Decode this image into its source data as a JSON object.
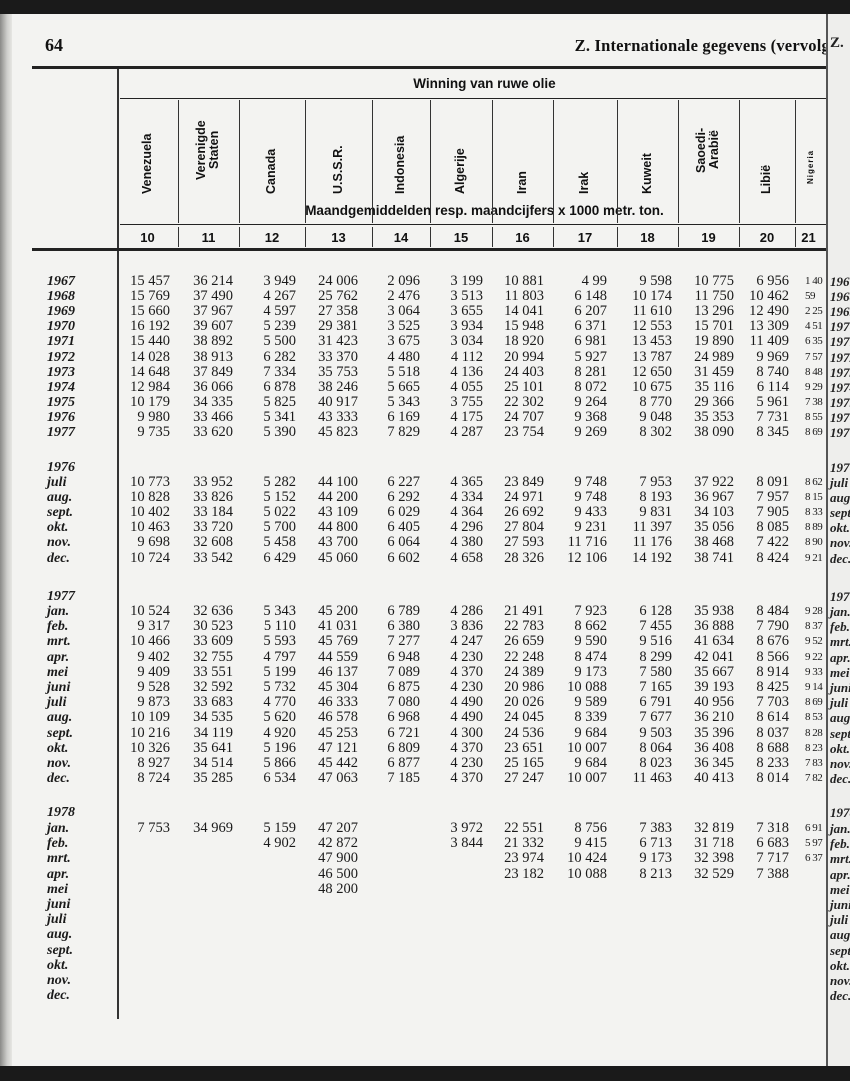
{
  "page_number": "64",
  "running_head": "Z.  Internationale gegevens (vervolg",
  "next_page_head": "Z.",
  "table": {
    "title": "Winning van ruwe olie",
    "unit_note": "Maandgemiddelden resp. maandcijfers x 1000 metr. ton.",
    "columns": [
      {
        "number": "10",
        "label": [
          "Venezuela"
        ]
      },
      {
        "number": "11",
        "label": [
          "Verenigde",
          "Staten"
        ]
      },
      {
        "number": "12",
        "label": [
          "Canada"
        ]
      },
      {
        "number": "13",
        "label": [
          "U.S.S.R."
        ]
      },
      {
        "number": "14",
        "label": [
          "Indonesia"
        ]
      },
      {
        "number": "15",
        "label": [
          "Algerije"
        ]
      },
      {
        "number": "16",
        "label": [
          "Iran"
        ]
      },
      {
        "number": "17",
        "label": [
          "Irak"
        ]
      },
      {
        "number": "18",
        "label": [
          "Kuweit"
        ]
      },
      {
        "number": "19",
        "label": [
          "Saoedi-",
          "Arabië"
        ]
      },
      {
        "number": "20",
        "label": [
          "Libië"
        ]
      },
      {
        "number": "21",
        "label": [
          "Nigeria"
        ]
      }
    ],
    "sections": [
      {
        "heading": "",
        "rows": [
          {
            "label": "1967",
            "values": [
              "15 457",
              "36 214",
              "3 949",
              "24 006",
              "2 096",
              "3 199",
              "10 881",
              "4 99",
              "9 598",
              "10 775",
              "6 956",
              "1 40"
            ]
          },
          {
            "label": "1968",
            "values": [
              "15 769",
              "37 490",
              "4 267",
              "25 762",
              "2 476",
              "3 513",
              "11 803",
              "6 148",
              "10 174",
              "11 750",
              "10 462",
              "59"
            ]
          },
          {
            "label": "1969",
            "values": [
              "15 660",
              "37 967",
              "4 597",
              "27 358",
              "3 064",
              "3 655",
              "14 041",
              "6 207",
              "11 610",
              "13 296",
              "12 490",
              "2 25"
            ]
          },
          {
            "label": "1970",
            "values": [
              "16 192",
              "39 607",
              "5 239",
              "29 381",
              "3 525",
              "3 934",
              "15 948",
              "6 371",
              "12 553",
              "15 701",
              "13 309",
              "4 51"
            ]
          },
          {
            "label": "1971",
            "values": [
              "15 440",
              "38 892",
              "5 500",
              "31 423",
              "3 675",
              "3 034",
              "18 920",
              "6 981",
              "13 453",
              "19 890",
              "11 409",
              "6 35"
            ]
          },
          {
            "label": "1972",
            "values": [
              "14 028",
              "38 913",
              "6 282",
              "33 370",
              "4 480",
              "4 112",
              "20 994",
              "5 927",
              "13 787",
              "24 989",
              "9 969",
              "7 57"
            ]
          },
          {
            "label": "1973",
            "values": [
              "14 648",
              "37 849",
              "7 334",
              "35 753",
              "5 518",
              "4 136",
              "24 403",
              "8 281",
              "12 650",
              "31 459",
              "8 740",
              "8 48"
            ]
          },
          {
            "label": "1974",
            "values": [
              "12 984",
              "36 066",
              "6 878",
              "38 246",
              "5 665",
              "4 055",
              "25 101",
              "8 072",
              "10 675",
              "35 116",
              "6 114",
              "9 29"
            ]
          },
          {
            "label": "1975",
            "values": [
              "10 179",
              "34 335",
              "5 825",
              "40 917",
              "5 343",
              "3 755",
              "22 302",
              "9 264",
              "8 770",
              "29 366",
              "5 961",
              "7 38"
            ]
          },
          {
            "label": "1976",
            "values": [
              "9 980",
              "33 466",
              "5 341",
              "43 333",
              "6 169",
              "4 175",
              "24 707",
              "9 368",
              "9 048",
              "35 353",
              "7 731",
              "8 55"
            ]
          },
          {
            "label": "1977",
            "values": [
              "9 735",
              "33 620",
              "5 390",
              "45 823",
              "7 829",
              "4 287",
              "23 754",
              "9 269",
              "8 302",
              "38 090",
              "8 345",
              "8 69"
            ]
          }
        ]
      },
      {
        "heading": "1976",
        "rows": [
          {
            "label": "juli",
            "values": [
              "10 773",
              "33 952",
              "5 282",
              "44 100",
              "6 227",
              "4 365",
              "23 849",
              "9 748",
              "7 953",
              "37 922",
              "8 091",
              "8 62"
            ]
          },
          {
            "label": "aug.",
            "values": [
              "10 828",
              "33 826",
              "5 152",
              "44 200",
              "6 292",
              "4 334",
              "24 971",
              "9 748",
              "8 193",
              "36 967",
              "7 957",
              "8 15"
            ]
          },
          {
            "label": "sept.",
            "values": [
              "10 402",
              "33 184",
              "5 022",
              "43 109",
              "6 029",
              "4 364",
              "26 692",
              "9 433",
              "9 831",
              "34 103",
              "7 905",
              "8 33"
            ]
          },
          {
            "label": "okt.",
            "values": [
              "10 463",
              "33 720",
              "5 700",
              "44 800",
              "6 405",
              "4 296",
              "27 804",
              "9 231",
              "11 397",
              "35 056",
              "8 085",
              "8 89"
            ]
          },
          {
            "label": "nov.",
            "values": [
              "9 698",
              "32 608",
              "5 458",
              "43 700",
              "6 064",
              "4 380",
              "27 593",
              "11 716",
              "11 176",
              "38 468",
              "7 422",
              "8 90"
            ]
          },
          {
            "label": "dec.",
            "values": [
              "10 724",
              "33 542",
              "6 429",
              "45 060",
              "6 602",
              "4 658",
              "28 326",
              "12 106",
              "14 192",
              "38 741",
              "8 424",
              "9 21"
            ]
          }
        ]
      },
      {
        "heading": "1977",
        "rows": [
          {
            "label": "jan.",
            "values": [
              "10 524",
              "32 636",
              "5 343",
              "45 200",
              "6 789",
              "4 286",
              "21 491",
              "7 923",
              "6 128",
              "35 938",
              "8 484",
              "9 28"
            ]
          },
          {
            "label": "feb.",
            "values": [
              "9 317",
              "30 523",
              "5 110",
              "41 031",
              "6 380",
              "3 836",
              "22 783",
              "8 662",
              "7 455",
              "36 888",
              "7 790",
              "8 37"
            ]
          },
          {
            "label": "mrt.",
            "values": [
              "10 466",
              "33 609",
              "5 593",
              "45 769",
              "7 277",
              "4 247",
              "26 659",
              "9 590",
              "9 516",
              "41 634",
              "8 676",
              "9 52"
            ]
          },
          {
            "label": "apr.",
            "values": [
              "9 402",
              "32 755",
              "4 797",
              "44 559",
              "6 948",
              "4 230",
              "22 248",
              "8 474",
              "8 299",
              "42 041",
              "8 566",
              "9 22"
            ]
          },
          {
            "label": "mei",
            "values": [
              "9 409",
              "33 551",
              "5 199",
              "46 137",
              "7 089",
              "4 370",
              "24 389",
              "9 173",
              "7 580",
              "35 667",
              "8 914",
              "9 33"
            ]
          },
          {
            "label": "juni",
            "values": [
              "9 528",
              "32 592",
              "5 732",
              "45 304",
              "6 875",
              "4 230",
              "20 986",
              "10 088",
              "7 165",
              "39 193",
              "8 425",
              "9 14"
            ]
          },
          {
            "label": "juli",
            "values": [
              "9 873",
              "33 683",
              "4 770",
              "46 333",
              "7 080",
              "4 490",
              "20 026",
              "9 589",
              "6 791",
              "40 956",
              "7 703",
              "8 69"
            ]
          },
          {
            "label": "aug.",
            "values": [
              "10 109",
              "34 535",
              "5 620",
              "46 578",
              "6 968",
              "4 490",
              "24 045",
              "8 339",
              "7 677",
              "36 210",
              "8 614",
              "8 53"
            ]
          },
          {
            "label": "sept.",
            "values": [
              "10 216",
              "34 119",
              "4 920",
              "45 253",
              "6 721",
              "4 300",
              "24 536",
              "9 684",
              "9 503",
              "35 396",
              "8 037",
              "8 28"
            ]
          },
          {
            "label": "okt.",
            "values": [
              "10 326",
              "35 641",
              "5 196",
              "47 121",
              "6 809",
              "4 370",
              "23 651",
              "10 007",
              "8 064",
              "36 408",
              "8 688",
              "8 23"
            ]
          },
          {
            "label": "nov.",
            "values": [
              "8 927",
              "34 514",
              "5 866",
              "45 442",
              "6 877",
              "4 230",
              "25 165",
              "9 684",
              "8 023",
              "36 345",
              "8 233",
              "7 83"
            ]
          },
          {
            "label": "dec.",
            "values": [
              "8 724",
              "35 285",
              "6 534",
              "47 063",
              "7 185",
              "4 370",
              "27 247",
              "10 007",
              "11 463",
              "40 413",
              "8 014",
              "7 82"
            ]
          }
        ]
      },
      {
        "heading": "1978",
        "rows": [
          {
            "label": "jan.",
            "values": [
              "7 753",
              "34 969",
              "5 159",
              "47 207",
              "",
              "3 972",
              "22 551",
              "8 756",
              "7 383",
              "32 819",
              "7 318",
              "6 91"
            ]
          },
          {
            "label": "feb.",
            "values": [
              "",
              "",
              "4 902",
              "42 872",
              "",
              "3 844",
              "21 332",
              "9 415",
              "6 713",
              "31 718",
              "6 683",
              "5 97"
            ]
          },
          {
            "label": "mrt.",
            "values": [
              "",
              "",
              "",
              "47 900",
              "",
              "",
              "23 974",
              "10 424",
              "9 173",
              "32 398",
              "7 717",
              "6 37"
            ]
          },
          {
            "label": "apr.",
            "values": [
              "",
              "",
              "",
              "46 500",
              "",
              "",
              "23 182",
              "10 088",
              "8 213",
              "32 529",
              "7 388",
              ""
            ]
          },
          {
            "label": "mei",
            "values": [
              "",
              "",
              "",
              "48 200",
              "",
              "",
              "",
              "",
              "",
              "",
              "",
              ""
            ]
          },
          {
            "label": "juni",
            "values": [
              "",
              "",
              "",
              "",
              "",
              "",
              "",
              "",
              "",
              "",
              "",
              ""
            ]
          },
          {
            "label": "juli",
            "values": [
              "",
              "",
              "",
              "",
              "",
              "",
              "",
              "",
              "",
              "",
              "",
              ""
            ]
          },
          {
            "label": "aug.",
            "values": [
              "",
              "",
              "",
              "",
              "",
              "",
              "",
              "",
              "",
              "",
              "",
              ""
            ]
          },
          {
            "label": "sept.",
            "values": [
              "",
              "",
              "",
              "",
              "",
              "",
              "",
              "",
              "",
              "",
              "",
              ""
            ]
          },
          {
            "label": "okt.",
            "values": [
              "",
              "",
              "",
              "",
              "",
              "",
              "",
              "",
              "",
              "",
              "",
              ""
            ]
          },
          {
            "label": "nov.",
            "values": [
              "",
              "",
              "",
              "",
              "",
              "",
              "",
              "",
              "",
              "",
              "",
              ""
            ]
          },
          {
            "label": "dec.",
            "values": [
              "",
              "",
              "",
              "",
              "",
              "",
              "",
              "",
              "",
              "",
              "",
              ""
            ]
          }
        ]
      }
    ]
  }
}
